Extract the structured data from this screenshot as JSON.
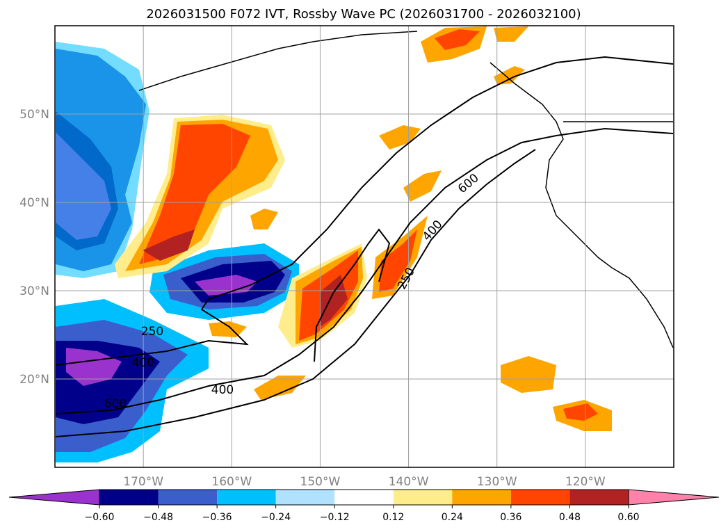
{
  "chart_data": {
    "type": "heatmap",
    "title": "2026031500 F072 IVT, Rossby Wave PC (2026031700 - 2026032100)",
    "x_ticks": [
      {
        "lon": -170,
        "label": "170°W"
      },
      {
        "lon": -160,
        "label": "160°W"
      },
      {
        "lon": -150,
        "label": "150°W"
      },
      {
        "lon": -140,
        "label": "140°W"
      },
      {
        "lon": -130,
        "label": "130°W"
      },
      {
        "lon": -120,
        "label": "120°W"
      }
    ],
    "y_ticks": [
      {
        "lat": 50,
        "label": "50°N"
      },
      {
        "lat": 40,
        "label": "40°N"
      },
      {
        "lat": 30,
        "label": "30°N"
      },
      {
        "lat": 20,
        "label": "20°N"
      }
    ],
    "xlim": [
      -180,
      -110
    ],
    "ylim": [
      10,
      60
    ],
    "grid": true,
    "colorbar": {
      "levels": [
        "-0.60",
        "-0.48",
        "-0.36",
        "-0.24",
        "-0.12",
        "0.12",
        "0.24",
        "0.36",
        "0.48",
        "0.60"
      ],
      "colors": [
        "#9a32cd",
        "#00008b",
        "#3a5fcd",
        "#00bfff",
        "#b0e2ff",
        "#ffffff",
        "#ffec8b",
        "#ffa500",
        "#ff4500",
        "#b22222",
        "#ff82ab"
      ],
      "extend": "both"
    },
    "ivt_contour_levels": [
      250,
      400,
      600
    ],
    "contour_labels": [
      "250",
      "400",
      "600"
    ],
    "colors": {
      "contour": "#000000",
      "coast": "#000000",
      "grid": "#a0a0a0"
    }
  }
}
